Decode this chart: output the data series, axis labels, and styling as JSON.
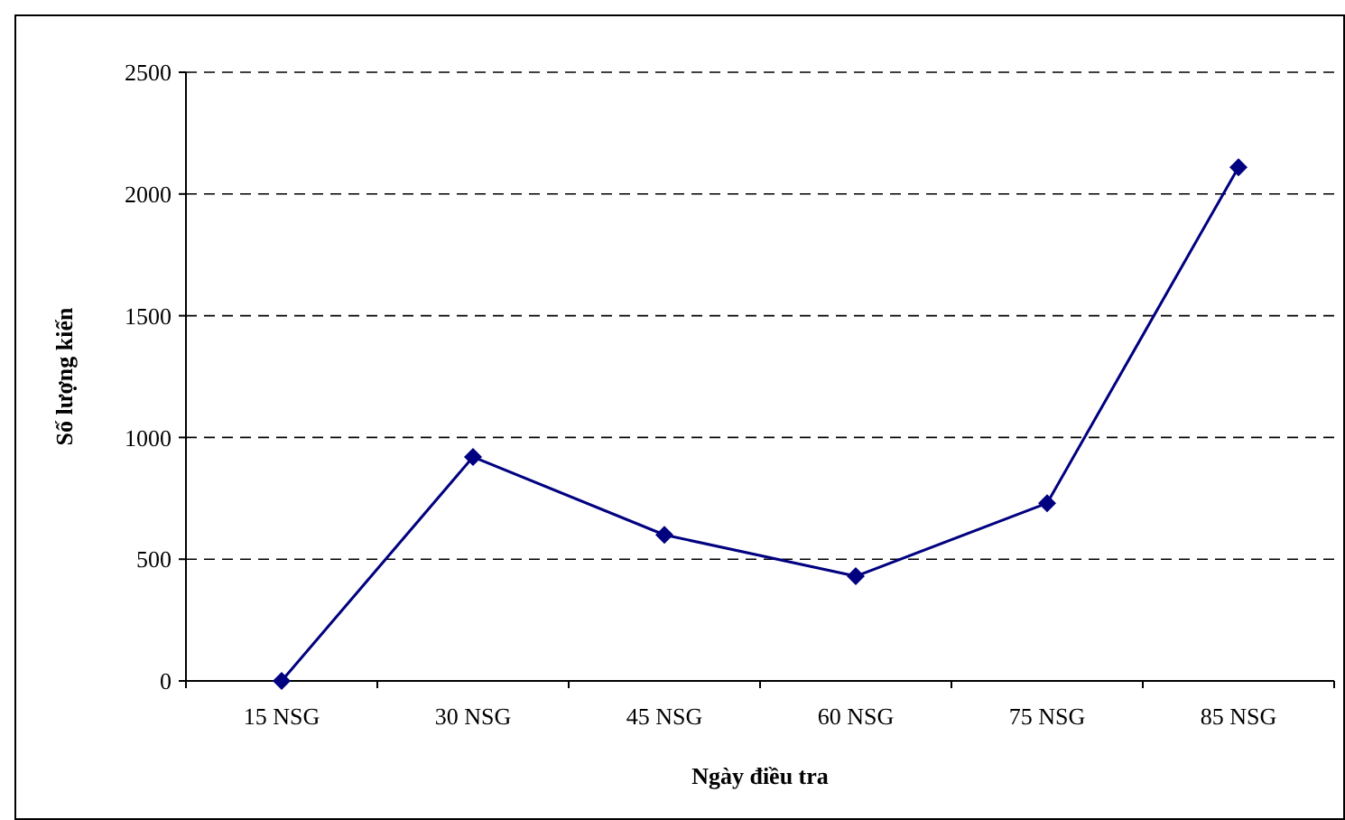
{
  "chart_data": {
    "type": "line",
    "xlabel": "Ngày điều tra",
    "ylabel": "Số lượng kiến",
    "categories": [
      "15 NSG",
      "30 NSG",
      "45 NSG",
      "60 NSG",
      "75 NSG",
      "85 NSG"
    ],
    "series": [
      {
        "color": "#000080",
        "values": [
          0,
          920,
          600,
          430,
          730,
          2110
        ]
      }
    ],
    "ylim": [
      0,
      2500
    ],
    "yticks": [
      0,
      500,
      1000,
      1500,
      2000,
      2500
    ],
    "grid": "y",
    "marker": "diamond",
    "line_style": "solid"
  }
}
